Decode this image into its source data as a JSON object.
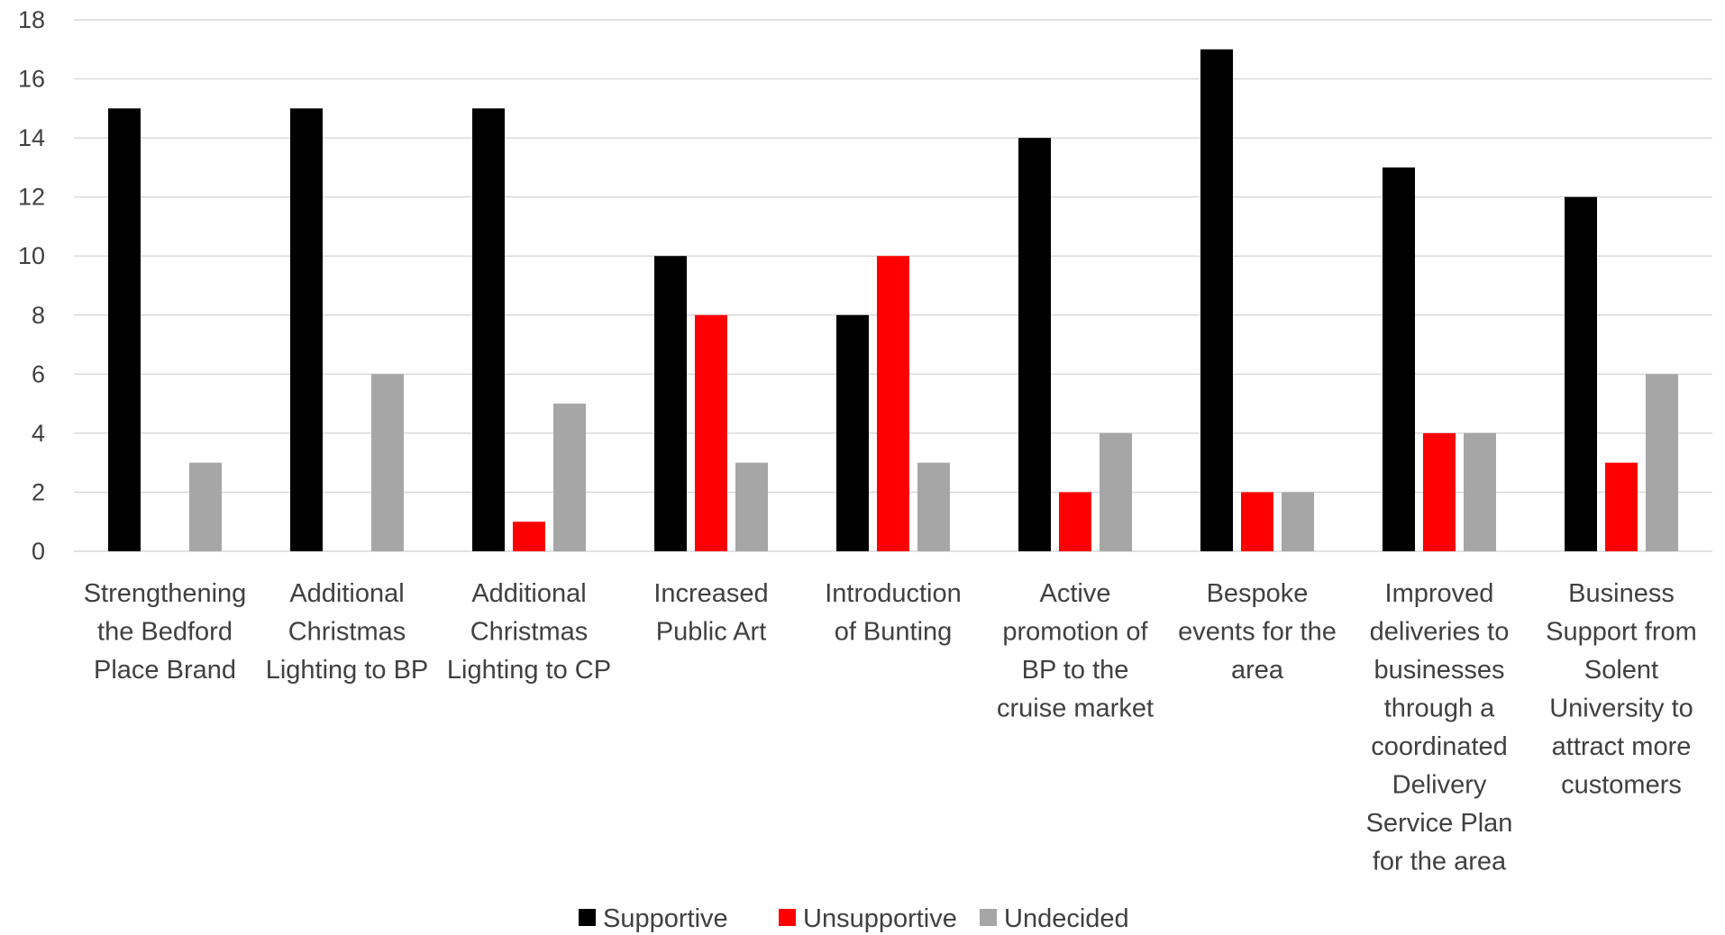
{
  "chart_data": {
    "type": "bar",
    "title": "",
    "xlabel": "",
    "ylabel": "",
    "ylim": [
      0,
      18
    ],
    "yticks": [
      0,
      2,
      4,
      6,
      8,
      10,
      12,
      14,
      16,
      18
    ],
    "grid": true,
    "legend_position": "bottom",
    "categories": [
      "Strengthening the Bedford Place Brand",
      "Additional Christmas Lighting to BP",
      "Additional Christmas Lighting to CP",
      "Increased Public Art",
      "Introduction of Bunting",
      "Active promotion of BP to the cruise market",
      "Bespoke events for the area",
      "Improved deliveries to businesses through a coordinated Delivery Service Plan for the area",
      "Business Support from Solent University to attract more customers"
    ],
    "category_lines": [
      [
        "Strengthening",
        "the Bedford",
        "Place Brand"
      ],
      [
        "Additional",
        "Christmas",
        "Lighting to BP"
      ],
      [
        "Additional",
        "Christmas",
        "Lighting to CP"
      ],
      [
        "Increased",
        "Public Art"
      ],
      [
        "Introduction",
        "of Bunting"
      ],
      [
        "Active",
        "promotion of",
        "BP to the",
        "cruise market"
      ],
      [
        "Bespoke",
        "events for the",
        "area"
      ],
      [
        "Improved",
        "deliveries to",
        "businesses",
        "through a",
        "coordinated",
        "Delivery",
        "Service Plan",
        "for the area"
      ],
      [
        "Business",
        "Support from",
        "Solent",
        "University to",
        "attract more",
        "customers"
      ]
    ],
    "series": [
      {
        "name": "Supportive",
        "color": "#000000",
        "values": [
          15,
          15,
          15,
          10,
          8,
          14,
          17,
          13,
          12
        ]
      },
      {
        "name": "Unsupportive",
        "color": "#ff0000",
        "values": [
          0,
          0,
          1,
          8,
          10,
          2,
          2,
          4,
          3
        ]
      },
      {
        "name": "Undecided",
        "color": "#a6a6a6",
        "values": [
          3,
          6,
          5,
          3,
          3,
          4,
          2,
          4,
          6
        ]
      }
    ]
  }
}
